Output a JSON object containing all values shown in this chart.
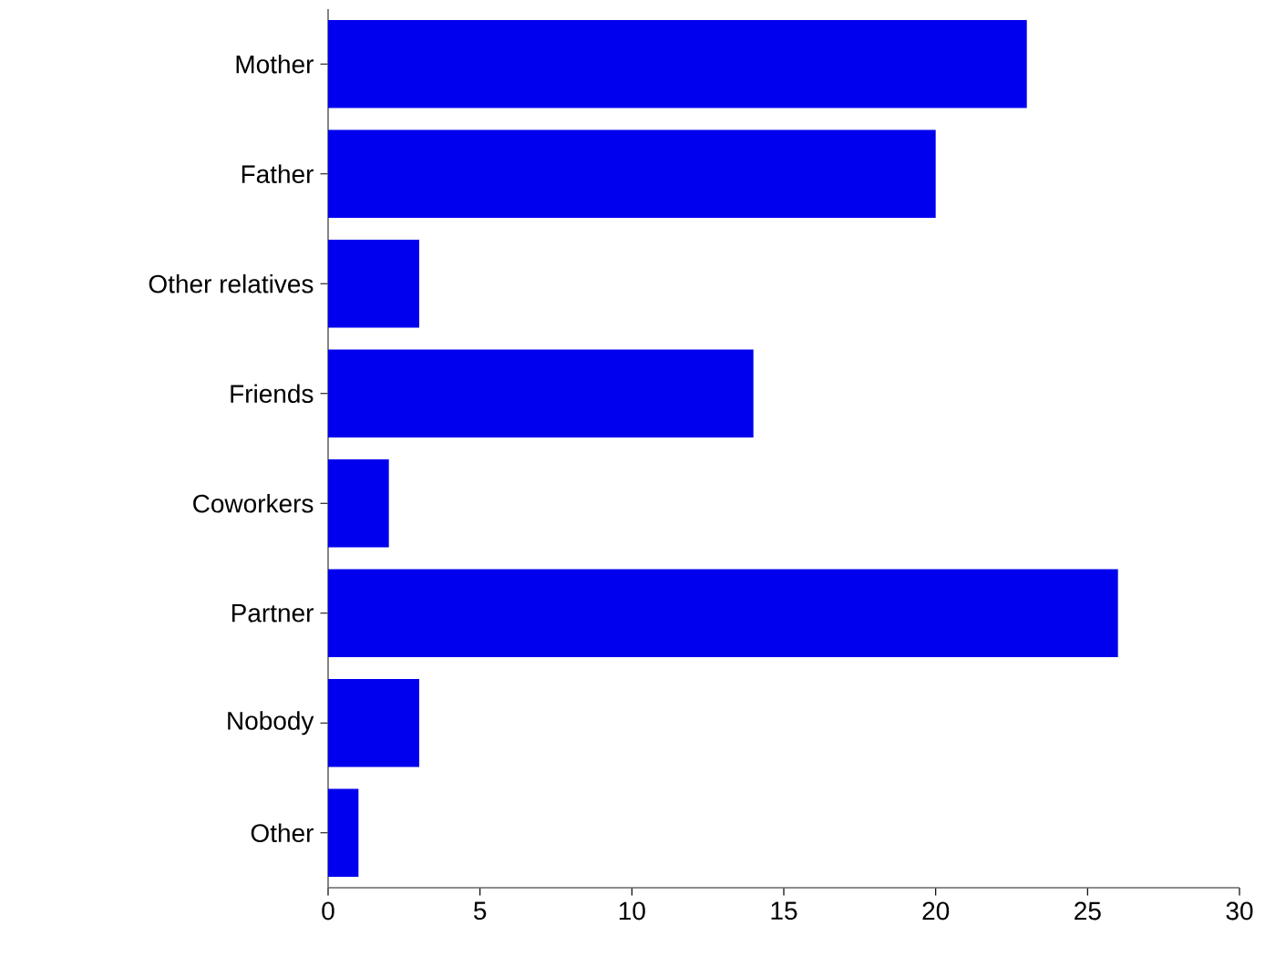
{
  "chart_data": {
    "type": "bar",
    "orientation": "horizontal",
    "categories": [
      "Mother",
      "Father",
      "Other relatives",
      "Friends",
      "Coworkers",
      "Partner",
      "Nobody",
      "Other"
    ],
    "values": [
      23,
      20,
      3,
      14,
      2,
      26,
      3,
      1
    ],
    "color": "#0000ee",
    "xlim": [
      0,
      30
    ],
    "xticks": [
      0,
      5,
      10,
      15,
      20,
      25,
      30
    ]
  }
}
